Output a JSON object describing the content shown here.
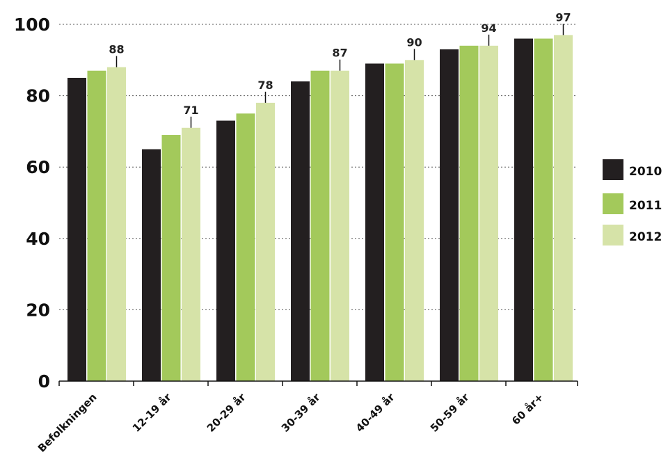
{
  "chart_data": {
    "type": "bar",
    "title": "",
    "xlabel": "",
    "ylabel": "",
    "categories": [
      "Befolkningen",
      "12-19 år",
      "20-29 år",
      "30-39 år",
      "40-49 år",
      "50-59 år",
      "60 år+"
    ],
    "series": [
      {
        "name": "2010",
        "color": "#231f20",
        "values": [
          85,
          65,
          73,
          84,
          89,
          93,
          96
        ]
      },
      {
        "name": "2011",
        "color": "#a3c95b",
        "values": [
          87,
          69,
          75,
          87,
          89,
          94,
          96
        ]
      },
      {
        "name": "2012",
        "color": "#d6e3a8",
        "values": [
          88,
          71,
          78,
          87,
          90,
          94,
          97
        ]
      }
    ],
    "data_labels": [
      "88",
      "71",
      "78",
      "87",
      "90",
      "94",
      "97"
    ],
    "ylim": [
      0,
      100
    ],
    "yticks": [
      "0",
      "20",
      "40",
      "60",
      "80",
      "100"
    ],
    "grid": true,
    "legend_position": "right"
  }
}
